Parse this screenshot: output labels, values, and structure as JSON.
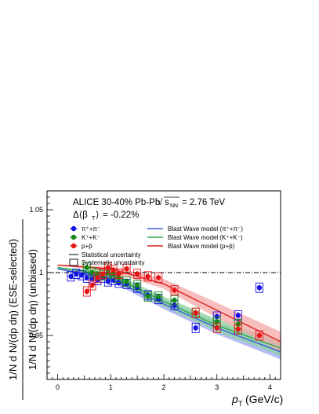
{
  "chart_data": {
    "type": "scatter",
    "title": "ALICE 30-40% Pb-Pb",
    "energy_label": "= 2.76 TeV",
    "beta_label": "= -0.22%",
    "xlabel": "p",
    "xlabel_sub": "T",
    "xlabel_unit": "(GeV/c)",
    "ylabel_top": "1/N   d N/(dp dη) (ESE-selected)",
    "ylabel_bottom": "1/N   d N/(dp dη) (unbiased)",
    "xlim": [
      -0.2,
      4.2
    ],
    "ylim": [
      0.915,
      1.065
    ],
    "x_ticks": [
      "0",
      "1",
      "2",
      "3",
      "4"
    ],
    "y_ticks": [
      "0.95",
      "1",
      "1.05"
    ],
    "reference_line": 1.0,
    "series": [
      {
        "name": "π⁺+π⁻",
        "color": "#1414e6",
        "x": [
          0.25,
          0.35,
          0.45,
          0.55,
          0.65,
          0.75,
          0.85,
          0.95,
          1.05,
          1.15,
          1.3,
          1.5,
          1.7,
          1.9,
          2.2,
          2.6,
          3.0,
          3.4,
          3.8
        ],
        "y": [
          0.997,
          0.999,
          0.998,
          0.996,
          0.995,
          0.994,
          0.996,
          0.993,
          0.994,
          0.992,
          0.991,
          0.988,
          0.982,
          0.979,
          0.974,
          0.956,
          0.965,
          0.966,
          0.988
        ]
      },
      {
        "name": "K⁺+K⁻",
        "color": "#148a14",
        "x": [
          0.55,
          0.65,
          0.75,
          0.85,
          0.95,
          1.05,
          1.15,
          1.3,
          1.5,
          1.7,
          1.9,
          2.2,
          2.6,
          3.0,
          3.4
        ],
        "y": [
          1.004,
          1.0,
          0.999,
          0.998,
          1.0,
          0.999,
          0.996,
          0.993,
          0.99,
          0.981,
          0.981,
          0.978,
          0.968,
          0.961,
          0.959
        ]
      },
      {
        "name": "p+p̄",
        "color": "#e61414",
        "x": [
          0.55,
          0.65,
          0.75,
          0.85,
          0.95,
          1.05,
          1.15,
          1.3,
          1.5,
          1.7,
          1.9,
          2.2,
          2.6,
          3.0,
          3.4,
          3.8
        ],
        "y": [
          0.985,
          0.99,
          0.996,
          0.999,
          1.004,
          1.002,
          0.999,
          1.003,
          0.999,
          0.997,
          0.996,
          0.986,
          0.968,
          0.956,
          0.955,
          0.95
        ]
      }
    ],
    "models": [
      {
        "name": "Blast Wave model (π⁺+π⁻)",
        "color": "#3a5fd9",
        "band": "#9aa3f2",
        "x": [
          0,
          1,
          2,
          3,
          4.2
        ],
        "y": [
          1.003,
          0.995,
          0.975,
          0.956,
          0.937
        ],
        "band_halfwidth": [
          0.0005,
          0.002,
          0.004,
          0.005,
          0.006
        ]
      },
      {
        "name": "Blast Wave model (K⁺+K⁻)",
        "color": "#2fa84f",
        "band": "#8fd49b",
        "x": [
          0,
          1,
          2,
          3,
          4.2
        ],
        "y": [
          1.004,
          0.998,
          0.977,
          0.958,
          0.94
        ],
        "band_halfwidth": [
          0.0005,
          0.002,
          0.004,
          0.005,
          0.006
        ]
      },
      {
        "name": "Blast Wave model (p+p̄)",
        "color": "#e02020",
        "band": "#f5a8a8",
        "x": [
          0,
          1,
          2,
          3,
          4.2
        ],
        "y": [
          1.006,
          1.003,
          0.991,
          0.97,
          0.945
        ],
        "band_halfwidth": [
          0.0005,
          0.002,
          0.004,
          0.006,
          0.008
        ]
      }
    ],
    "legend": {
      "placement": "top",
      "series_labels": [
        "π⁺+π⁻",
        "K⁺+K⁻",
        "p+p̄"
      ],
      "model_labels": [
        "Blast Wave model (π⁺+π⁻)",
        "Blast Wave model (K⁺+K⁻)",
        "Blast Wave model (p+p̄)"
      ],
      "stat_label": "Statistical uncertainty",
      "syst_label": "Systematic uncertainty"
    }
  }
}
